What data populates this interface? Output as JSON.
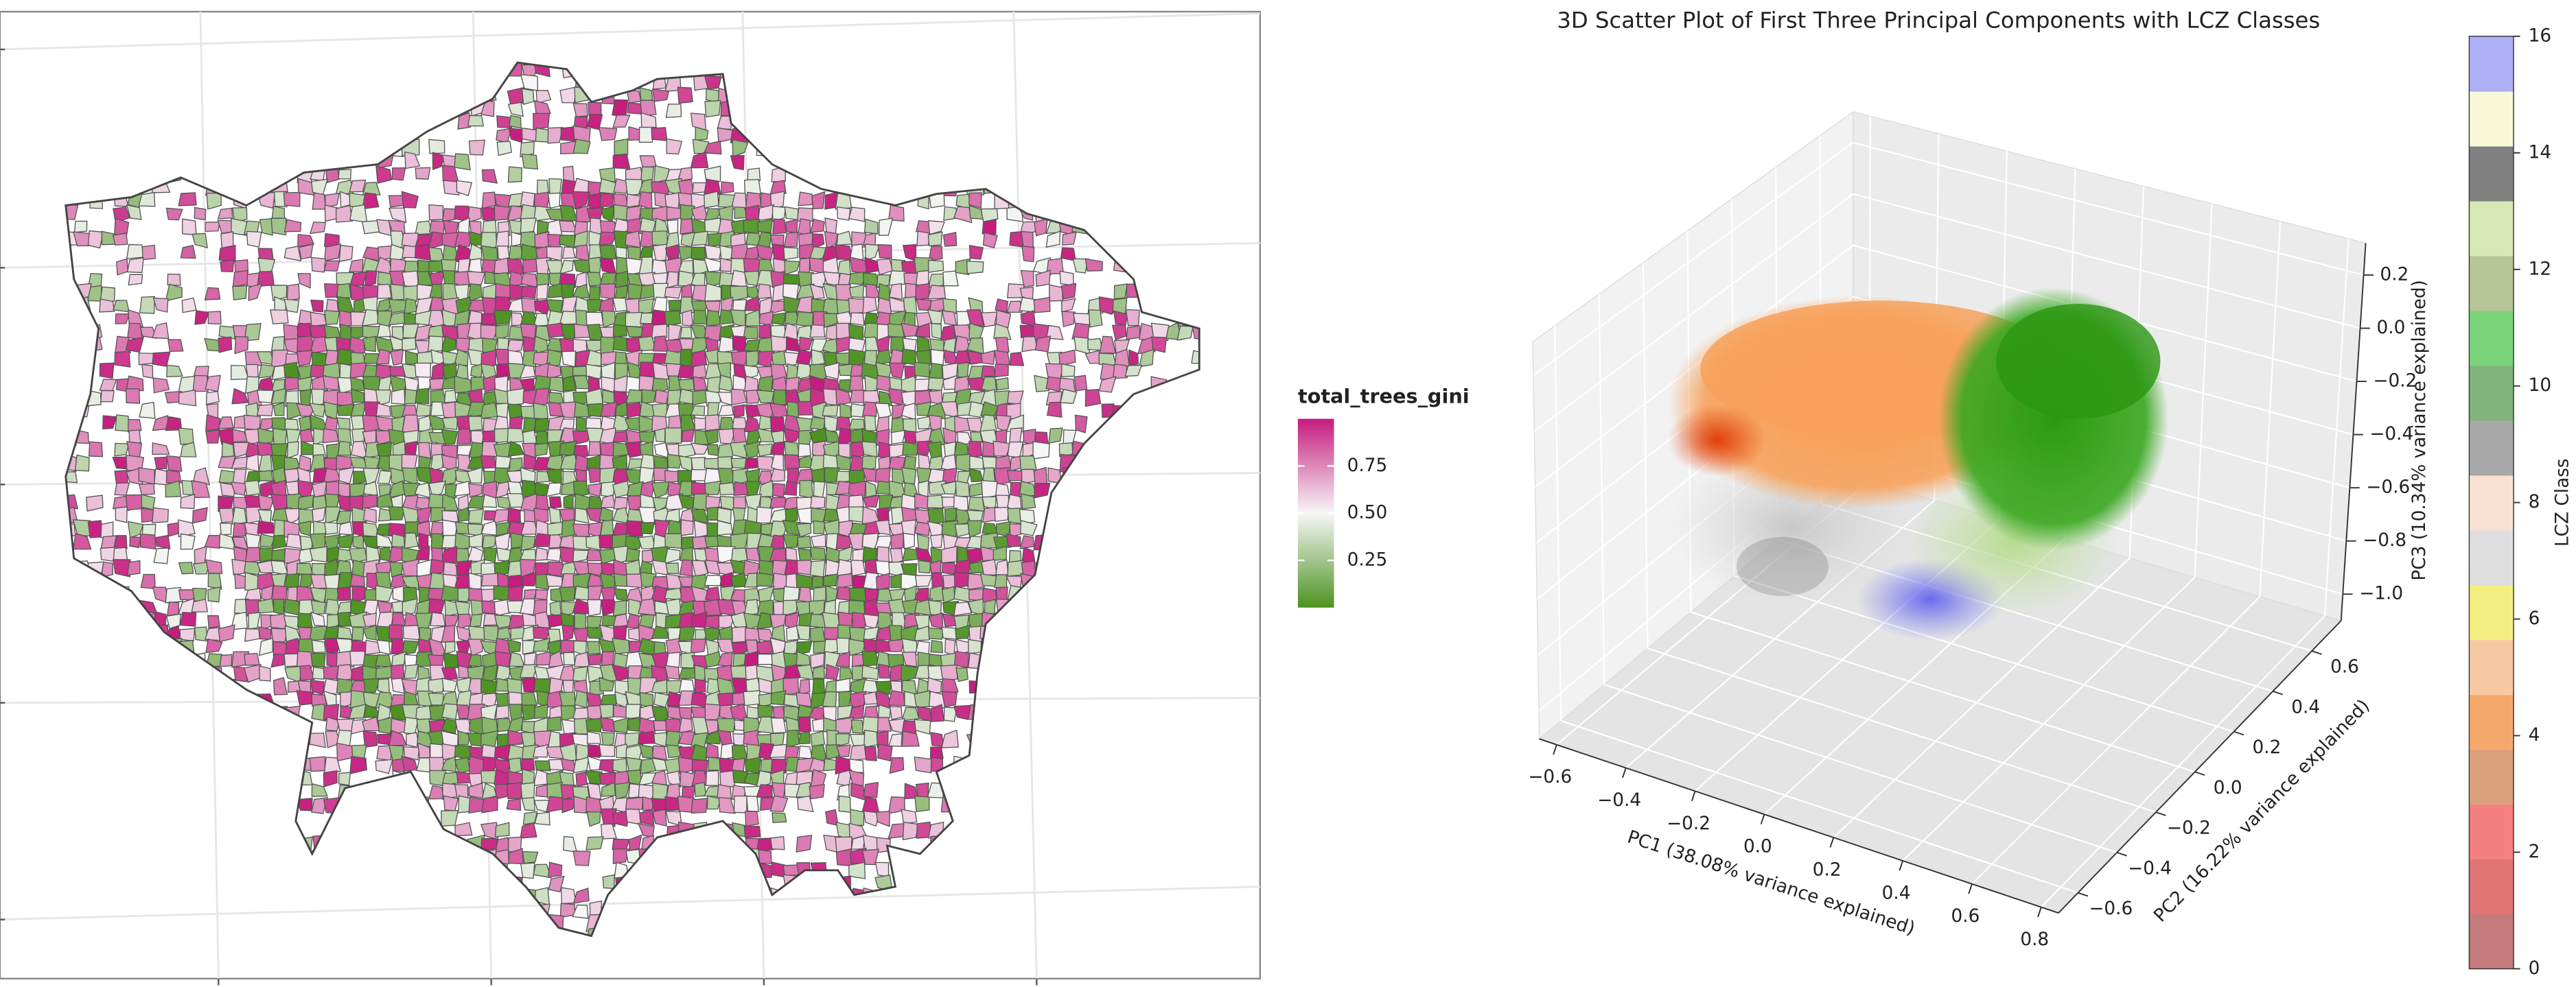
{
  "chart_data": [
    {
      "type": "map",
      "legend_title": "total_trees_gini",
      "colors": [
        "#4d9221",
        "#f7f7f7",
        "#c51b7d"
      ],
      "clim": [
        0,
        1
      ],
      "cticks": [
        0.25,
        {
          "value": 0.5,
          "label": "0.50"
        },
        0.75
      ]
    },
    {
      "type": "scatter3d",
      "title": "3D Scatter Plot of First Three Principal Components with LCZ Classes",
      "xlabel": "PC1 (38.08% variance explained)",
      "ylabel": "PC2 (16.22% variance explained)",
      "zlabel": "PC3 (10.34% variance explained)",
      "xlim": [
        -0.65,
        0.85
      ],
      "ylim": [
        -0.7,
        0.75
      ],
      "zlim": [
        -1.1,
        0.32
      ],
      "xticks": [
        {
          "value": -0.6,
          "label": "−0.6"
        },
        {
          "value": -0.4,
          "label": "−0.4"
        },
        {
          "value": -0.2,
          "label": "−0.2"
        },
        {
          "value": 0,
          "label": "0.0"
        },
        0.2,
        0.4,
        0.6,
        0.8
      ],
      "yticks": [
        {
          "value": -0.6,
          "label": "−0.6"
        },
        {
          "value": -0.4,
          "label": "−0.4"
        },
        {
          "value": -0.2,
          "label": "−0.2"
        },
        {
          "value": 0,
          "label": "0.0"
        },
        0.2,
        0.4,
        0.6
      ],
      "zticks": [
        {
          "value": -1.0,
          "label": "−1.0"
        },
        {
          "value": -0.8,
          "label": "−0.8"
        },
        {
          "value": -0.6,
          "label": "−0.6"
        },
        {
          "value": -0.4,
          "label": "−0.4"
        },
        {
          "value": -0.2,
          "label": "−0.2"
        },
        {
          "value": 0,
          "label": "0.0"
        },
        0.2
      ],
      "colorbar_label": "LCZ Class",
      "clim": [
        0,
        16
      ],
      "cticks": [
        0,
        2,
        4,
        6,
        8,
        10,
        12,
        14,
        16
      ],
      "colors": [
        "#c47a7a",
        "#e07474",
        "#f48080",
        "#d9a07a",
        "#f6a86c",
        "#f8c8a2",
        "#f4ee80",
        "#dedede",
        "#f9e2d2",
        "#a8a8a8",
        "#80b47c",
        "#7ad47a",
        "#b6c496",
        "#d6e8b4",
        "#808080",
        "#f8f8d8",
        "#b0b0f8"
      ]
    }
  ]
}
